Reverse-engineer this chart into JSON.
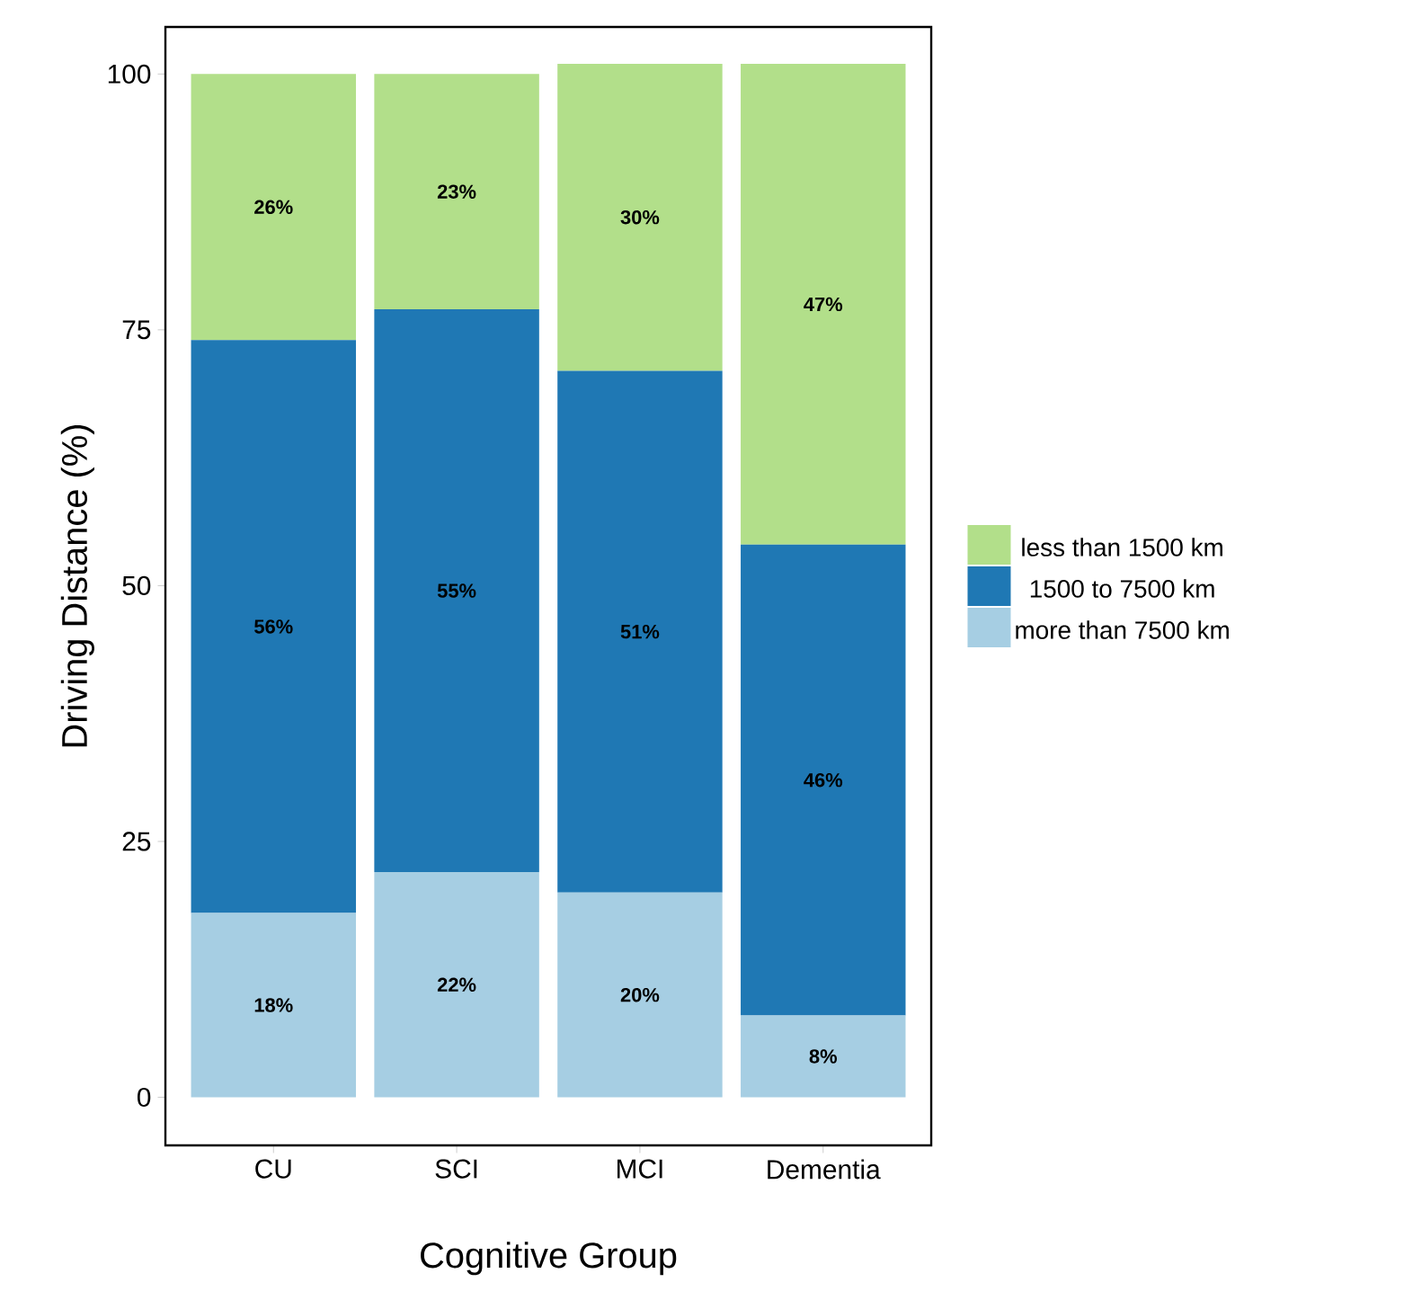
{
  "chart_data": {
    "type": "bar",
    "stacked": true,
    "xlabel": "Cognitive Group",
    "ylabel": "Driving Distance (%)",
    "categories": [
      "CU",
      "SCI",
      "MCI",
      "Dementia"
    ],
    "series": [
      {
        "name": "more than 7500 km",
        "color": "#a6cee3",
        "values": [
          18,
          22,
          20,
          8
        ],
        "value_labels": [
          "18%",
          "22%",
          "20%",
          "8%"
        ]
      },
      {
        "name": "1500 to 7500 km",
        "color": "#1f78b4",
        "values": [
          56,
          55,
          51,
          46
        ],
        "value_labels": [
          "56%",
          "55%",
          "51%",
          "46%"
        ]
      },
      {
        "name": "less than 1500 km",
        "color": "#b2df8a",
        "values": [
          26,
          23,
          30,
          47
        ],
        "value_labels": [
          "26%",
          "23%",
          "30%",
          "47%"
        ]
      }
    ],
    "ylim": [
      -4.7,
      104.6
    ],
    "yticks": [
      0,
      25,
      50,
      75,
      100
    ],
    "legend": "right"
  }
}
